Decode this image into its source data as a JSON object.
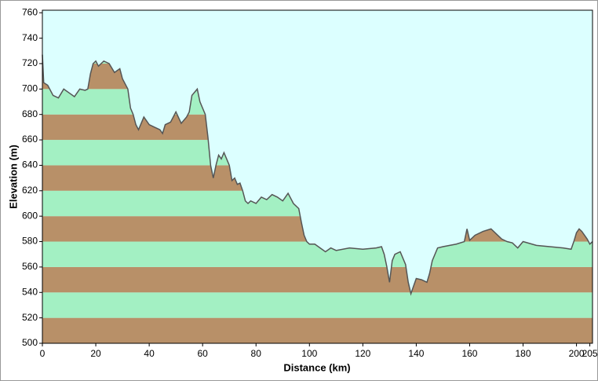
{
  "chart_data": {
    "type": "area",
    "xlabel": "Distance   (km)",
    "ylabel": "Elevation  (m)",
    "x": [
      0,
      0.5,
      2,
      4,
      6,
      8,
      10,
      12,
      14,
      16,
      17,
      18,
      19,
      20,
      21,
      23,
      25,
      27,
      29,
      30,
      32,
      33,
      34,
      35,
      36,
      38,
      40,
      42,
      44,
      45,
      46,
      48,
      50,
      52,
      54,
      55,
      56,
      58,
      59,
      60,
      61,
      62,
      63,
      64,
      65,
      66,
      67,
      68,
      69,
      70,
      71,
      72,
      73,
      74,
      75,
      76,
      77,
      78,
      80,
      82,
      84,
      86,
      88,
      90,
      92,
      94,
      96,
      97,
      98,
      99,
      100,
      102,
      104,
      106,
      108,
      110,
      115,
      120,
      125,
      127,
      128,
      129,
      130,
      131,
      132,
      134,
      136,
      137,
      138,
      139,
      140,
      142,
      144,
      145,
      146,
      148,
      150,
      155,
      158,
      159,
      160,
      162,
      165,
      168,
      170,
      172,
      174,
      176,
      178,
      180,
      185,
      190,
      195,
      198,
      199,
      200,
      201,
      202,
      203,
      204,
      205,
      206
    ],
    "values": [
      727,
      705,
      703,
      695,
      693,
      700,
      697,
      694,
      700,
      699,
      700,
      712,
      720,
      722,
      718,
      722,
      720,
      713,
      716,
      708,
      700,
      685,
      680,
      672,
      668,
      678,
      672,
      670,
      668,
      665,
      672,
      674,
      682,
      673,
      678,
      682,
      695,
      700,
      690,
      685,
      680,
      662,
      640,
      630,
      640,
      648,
      645,
      650,
      645,
      640,
      628,
      630,
      625,
      626,
      620,
      612,
      610,
      612,
      610,
      615,
      613,
      617,
      615,
      612,
      618,
      610,
      606,
      595,
      585,
      580,
      578,
      578,
      575,
      572,
      575,
      573,
      575,
      574,
      575,
      576,
      570,
      560,
      548,
      565,
      570,
      572,
      562,
      548,
      539,
      545,
      551,
      550,
      548,
      555,
      565,
      575,
      576,
      578,
      580,
      590,
      581,
      585,
      588,
      590,
      586,
      582,
      580,
      579,
      575,
      580,
      577,
      576,
      575,
      574,
      580,
      587,
      590,
      588,
      585,
      582,
      578,
      580
    ],
    "xlim": [
      0,
      206
    ],
    "ylim": [
      500,
      762
    ],
    "xticks": [
      0,
      20,
      40,
      60,
      80,
      100,
      120,
      140,
      160,
      180,
      200,
      205
    ],
    "yticks": [
      500,
      520,
      540,
      560,
      580,
      600,
      620,
      640,
      660,
      680,
      700,
      720,
      740,
      760
    ],
    "background": "#dcffff",
    "band_colors": [
      "#b89068",
      "#a3f0c3"
    ],
    "line_color": "#555555"
  }
}
